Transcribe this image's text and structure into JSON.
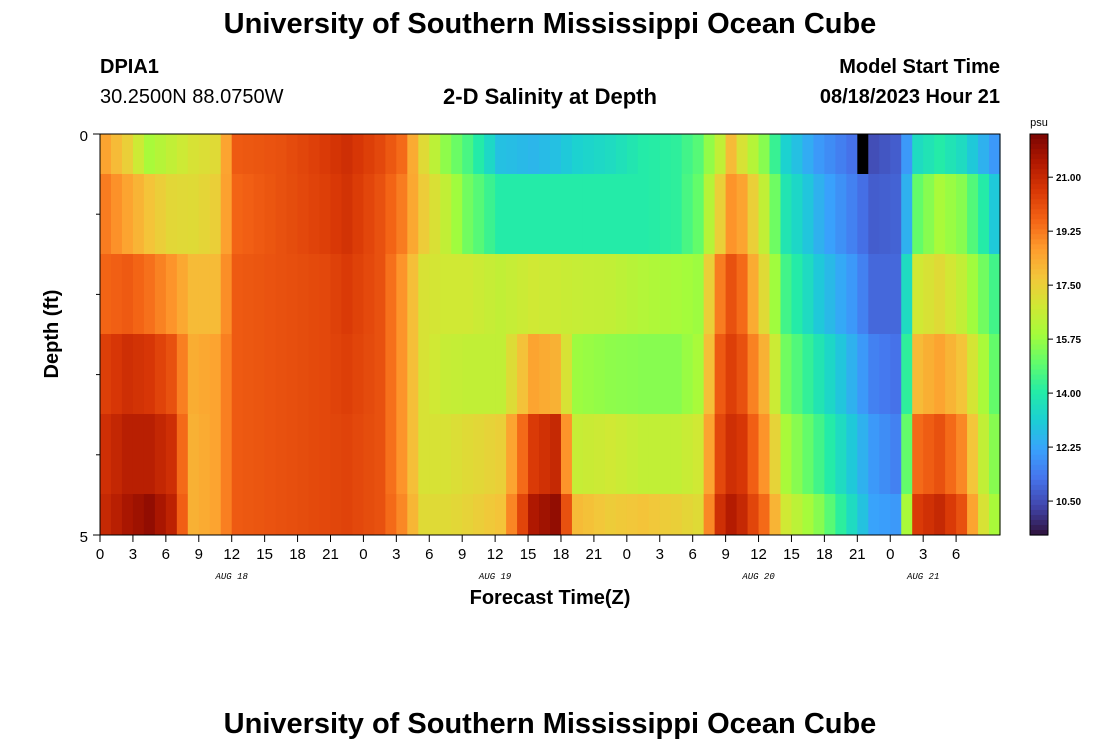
{
  "header": {
    "title": "University of Southern Mississippi Ocean Cube",
    "station_id": "DPIA1",
    "coordinates": "30.2500N  88.0750W",
    "subtitle": "2-D Salinity at Depth",
    "model_start_label": "Model Start Time",
    "model_start_value": "08/18/2023 Hour 21"
  },
  "footer": {
    "title": "University of Southern Mississippi Ocean Cube"
  },
  "chart_data": {
    "type": "heatmap",
    "title": "2-D Salinity at Depth",
    "xlabel": "Forecast Time(Z)",
    "ylabel": "Depth (ft)",
    "ylim": [
      0,
      5
    ],
    "y_tick_labels": [
      "0",
      "5"
    ],
    "x_hours": [
      0,
      1,
      2,
      3,
      4,
      5,
      6,
      7,
      8,
      9,
      10,
      11,
      12,
      13,
      14,
      15,
      16,
      17,
      18,
      19,
      20,
      21,
      22,
      23,
      24,
      25,
      26,
      27,
      28,
      29,
      30,
      31,
      32,
      33,
      34,
      35,
      36,
      37,
      38,
      39,
      40,
      41,
      42,
      43,
      44,
      45,
      46,
      47,
      48,
      49,
      50,
      51,
      52,
      53,
      54,
      55,
      56,
      57,
      58,
      59,
      60,
      61,
      62,
      63,
      64,
      65,
      66,
      67,
      68,
      69,
      70,
      71,
      72,
      73,
      74,
      75,
      76,
      77,
      78,
      79,
      80,
      81
    ],
    "x_tick_labels": [
      "0",
      "3",
      "6",
      "9",
      "12",
      "15",
      "18",
      "21",
      "0",
      "3",
      "6",
      "9",
      "12",
      "15",
      "18",
      "21",
      "0",
      "3",
      "6",
      "9",
      "12",
      "15",
      "18",
      "21",
      "0",
      "3",
      "6"
    ],
    "date_labels": [
      {
        "label": "AUG 18",
        "hour": 12
      },
      {
        "label": "AUG 19",
        "hour": 36
      },
      {
        "label": "AUG 20",
        "hour": 60
      },
      {
        "label": "AUG 21",
        "hour": 75
      }
    ],
    "colorbar": {
      "unit": "psu",
      "min": 9.4,
      "max": 22.4,
      "tick_labels": [
        "21.00",
        "19.25",
        "17.50",
        "15.75",
        "14.00",
        "12.25",
        "10.50"
      ],
      "tick_values": [
        21.0,
        19.25,
        17.5,
        15.75,
        14.0,
        12.25,
        10.5
      ],
      "colors": [
        "#30123b",
        "#4145ab",
        "#4675ed",
        "#39a2fc",
        "#1bcfd4",
        "#24eca6",
        "#61fc6c",
        "#a4fc3b",
        "#d1e834",
        "#f3c63a",
        "#fe9b2d",
        "#f36315",
        "#d93806",
        "#b11901",
        "#7a0402"
      ]
    },
    "depth_layers": [
      "0.0-0.5 ft",
      "0.5-1.5 ft",
      "1.5-2.5 ft",
      "2.5-3.5 ft",
      "3.5-4.5 ft",
      "4.5-5.0 ft"
    ],
    "salinity_keyframes": [
      {
        "hour": 0,
        "psu": [
          18.5,
          19.2,
          19.6,
          20.4,
          20.8,
          21.0
        ]
      },
      {
        "hour": 2,
        "psu": [
          17.5,
          18.5,
          19.8,
          20.8,
          21.3,
          21.6
        ]
      },
      {
        "hour": 4,
        "psu": [
          16.0,
          17.8,
          19.4,
          20.6,
          21.3,
          22.0
        ]
      },
      {
        "hour": 6,
        "psu": [
          16.5,
          17.3,
          18.8,
          20.0,
          20.8,
          21.2
        ]
      },
      {
        "hour": 8,
        "psu": [
          17.0,
          17.2,
          18.0,
          18.3,
          18.2,
          18.2
        ]
      },
      {
        "hour": 10,
        "psu": [
          17.2,
          17.5,
          18.0,
          18.5,
          18.5,
          18.5
        ]
      },
      {
        "hour": 12,
        "psu": [
          19.8,
          19.6,
          19.8,
          19.8,
          19.8,
          19.8
        ]
      },
      {
        "hour": 16,
        "psu": [
          20.0,
          20.0,
          20.0,
          20.0,
          20.0,
          20.0
        ]
      },
      {
        "hour": 20,
        "psu": [
          20.5,
          20.4,
          20.2,
          20.2,
          20.2,
          20.2
        ]
      },
      {
        "hour": 22,
        "psu": [
          20.8,
          20.7,
          20.5,
          20.4,
          20.3,
          20.3
        ]
      },
      {
        "hour": 25,
        "psu": [
          20.2,
          20.0,
          20.0,
          20.0,
          20.0,
          20.0
        ]
      },
      {
        "hour": 27,
        "psu": [
          19.5,
          19.2,
          18.8,
          18.8,
          18.8,
          19.0
        ]
      },
      {
        "hour": 29,
        "psu": [
          17.2,
          17.6,
          17.0,
          17.0,
          17.0,
          17.2
        ]
      },
      {
        "hour": 31,
        "psu": [
          15.6,
          16.5,
          16.8,
          16.6,
          17.0,
          17.2
        ]
      },
      {
        "hour": 33,
        "psu": [
          14.6,
          15.2,
          16.8,
          16.5,
          17.2,
          17.4
        ]
      },
      {
        "hour": 36,
        "psu": [
          12.8,
          14.0,
          16.5,
          16.5,
          17.5,
          17.8
        ]
      },
      {
        "hour": 39,
        "psu": [
          12.6,
          14.0,
          16.8,
          18.5,
          20.5,
          21.5
        ]
      },
      {
        "hour": 41,
        "psu": [
          12.8,
          14.0,
          16.7,
          18.2,
          21.0,
          22.0
        ]
      },
      {
        "hour": 43,
        "psu": [
          13.2,
          14.0,
          16.6,
          15.8,
          16.6,
          18.0
        ]
      },
      {
        "hour": 46,
        "psu": [
          13.5,
          14.0,
          16.5,
          15.6,
          16.8,
          17.6
        ]
      },
      {
        "hour": 49,
        "psu": [
          14.0,
          14.0,
          16.2,
          15.5,
          16.5,
          17.8
        ]
      },
      {
        "hour": 52,
        "psu": [
          14.2,
          14.2,
          16.0,
          15.5,
          16.5,
          17.5
        ]
      },
      {
        "hour": 54,
        "psu": [
          14.8,
          15.0,
          15.8,
          16.0,
          16.8,
          17.2
        ]
      },
      {
        "hour": 56,
        "psu": [
          16.5,
          17.5,
          19.2,
          19.8,
          20.2,
          20.8
        ]
      },
      {
        "hour": 57,
        "psu": [
          18.0,
          18.8,
          20.0,
          20.4,
          20.8,
          21.4
        ]
      },
      {
        "hour": 58,
        "psu": [
          17.0,
          18.5,
          19.5,
          20.0,
          20.6,
          21.0
        ]
      },
      {
        "hour": 60,
        "psu": [
          15.5,
          16.5,
          17.2,
          18.2,
          18.8,
          19.5
        ]
      },
      {
        "hour": 62,
        "psu": [
          13.2,
          13.8,
          14.5,
          15.2,
          16.0,
          16.8
        ]
      },
      {
        "hour": 65,
        "psu": [
          12.0,
          12.5,
          13.0,
          13.8,
          14.5,
          15.5
        ]
      },
      {
        "hour": 68,
        "psu": [
          11.2,
          11.5,
          12.0,
          12.5,
          13.0,
          13.5
        ]
      },
      {
        "hour": 70,
        "psu": [
          10.5,
          10.8,
          11.0,
          11.5,
          12.0,
          12.2
        ]
      },
      {
        "hour": 72,
        "psu": [
          10.8,
          10.9,
          11.0,
          11.2,
          11.5,
          12.0
        ]
      },
      {
        "hour": 73,
        "psu": [
          12.0,
          12.5,
          13.5,
          14.2,
          15.0,
          16.0
        ]
      },
      {
        "hour": 74,
        "psu": [
          13.5,
          15.0,
          16.8,
          18.0,
          19.5,
          20.5
        ]
      },
      {
        "hour": 76,
        "psu": [
          14.0,
          16.0,
          17.2,
          18.5,
          20.0,
          21.0
        ]
      },
      {
        "hour": 78,
        "psu": [
          13.5,
          15.5,
          16.5,
          17.8,
          19.0,
          20.0
        ]
      },
      {
        "hour": 80,
        "psu": [
          12.5,
          14.0,
          15.2,
          16.0,
          16.5,
          17.0
        ]
      },
      {
        "hour": 81,
        "psu": [
          12.0,
          13.0,
          14.5,
          15.0,
          15.5,
          16.0
        ]
      }
    ],
    "missing_cell": {
      "hour": 69,
      "layer": 0
    }
  }
}
